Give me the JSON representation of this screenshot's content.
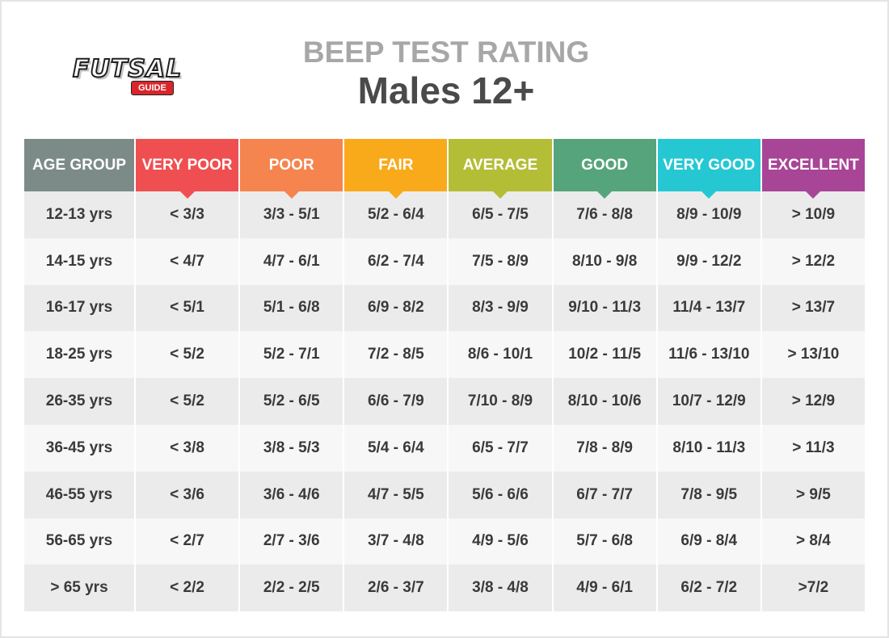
{
  "logo": {
    "name": "FUTSAL",
    "tag": "GUIDE"
  },
  "title": "BEEP TEST RATING",
  "subtitle": "Males 12+",
  "table": {
    "header": [
      {
        "label": "AGE GROUP",
        "color": "#7d8b88"
      },
      {
        "label": "VERY POOR",
        "color": "#f04f51"
      },
      {
        "label": "POOR",
        "color": "#f5844e"
      },
      {
        "label": "FAIR",
        "color": "#f9aa1b"
      },
      {
        "label": "AVERAGE",
        "color": "#b4bd36"
      },
      {
        "label": "GOOD",
        "color": "#56a47b"
      },
      {
        "label": "VERY GOOD",
        "color": "#25c8d2"
      },
      {
        "label": "EXCELLENT",
        "color": "#a84596"
      }
    ],
    "rows": [
      [
        "12-13 yrs",
        "< 3/3",
        "3/3 - 5/1",
        "5/2 - 6/4",
        "6/5 - 7/5",
        "7/6 - 8/8",
        "8/9 - 10/9",
        "> 10/9"
      ],
      [
        "14-15 yrs",
        "< 4/7",
        "4/7 - 6/1",
        "6/2 - 7/4",
        "7/5 - 8/9",
        "8/10 - 9/8",
        "9/9 - 12/2",
        "> 12/2"
      ],
      [
        "16-17 yrs",
        "< 5/1",
        "5/1 - 6/8",
        "6/9 - 8/2",
        "8/3 - 9/9",
        "9/10 - 11/3",
        "11/4 - 13/7",
        "> 13/7"
      ],
      [
        "18-25 yrs",
        "< 5/2",
        "5/2 - 7/1",
        "7/2 - 8/5",
        "8/6 - 10/1",
        "10/2 - 11/5",
        "11/6 - 13/10",
        "> 13/10"
      ],
      [
        "26-35 yrs",
        "< 5/2",
        "5/2 - 6/5",
        "6/6 - 7/9",
        "7/10 - 8/9",
        "8/10 - 10/6",
        "10/7 - 12/9",
        "> 12/9"
      ],
      [
        "36-45 yrs",
        "< 3/8",
        "3/8 - 5/3",
        "5/4 - 6/4",
        "6/5 - 7/7",
        "7/8 - 8/9",
        "8/10 - 11/3",
        "> 11/3"
      ],
      [
        "46-55 yrs",
        "< 3/6",
        "3/6 - 4/6",
        "4/7 - 5/5",
        "5/6 - 6/6",
        "6/7 - 7/7",
        "7/8 - 9/5",
        "> 9/5"
      ],
      [
        "56-65 yrs",
        "< 2/7",
        "2/7 - 3/6",
        "3/7 - 4/8",
        "4/9 - 5/6",
        "5/7 - 6/8",
        "6/9 - 8/4",
        "> 8/4"
      ],
      [
        "> 65 yrs",
        "< 2/2",
        "2/2 - 2/5",
        "2/6 - 3/7",
        "3/8 - 4/8",
        "4/9 - 6/1",
        "6/2 - 7/2",
        ">7/2"
      ]
    ]
  }
}
